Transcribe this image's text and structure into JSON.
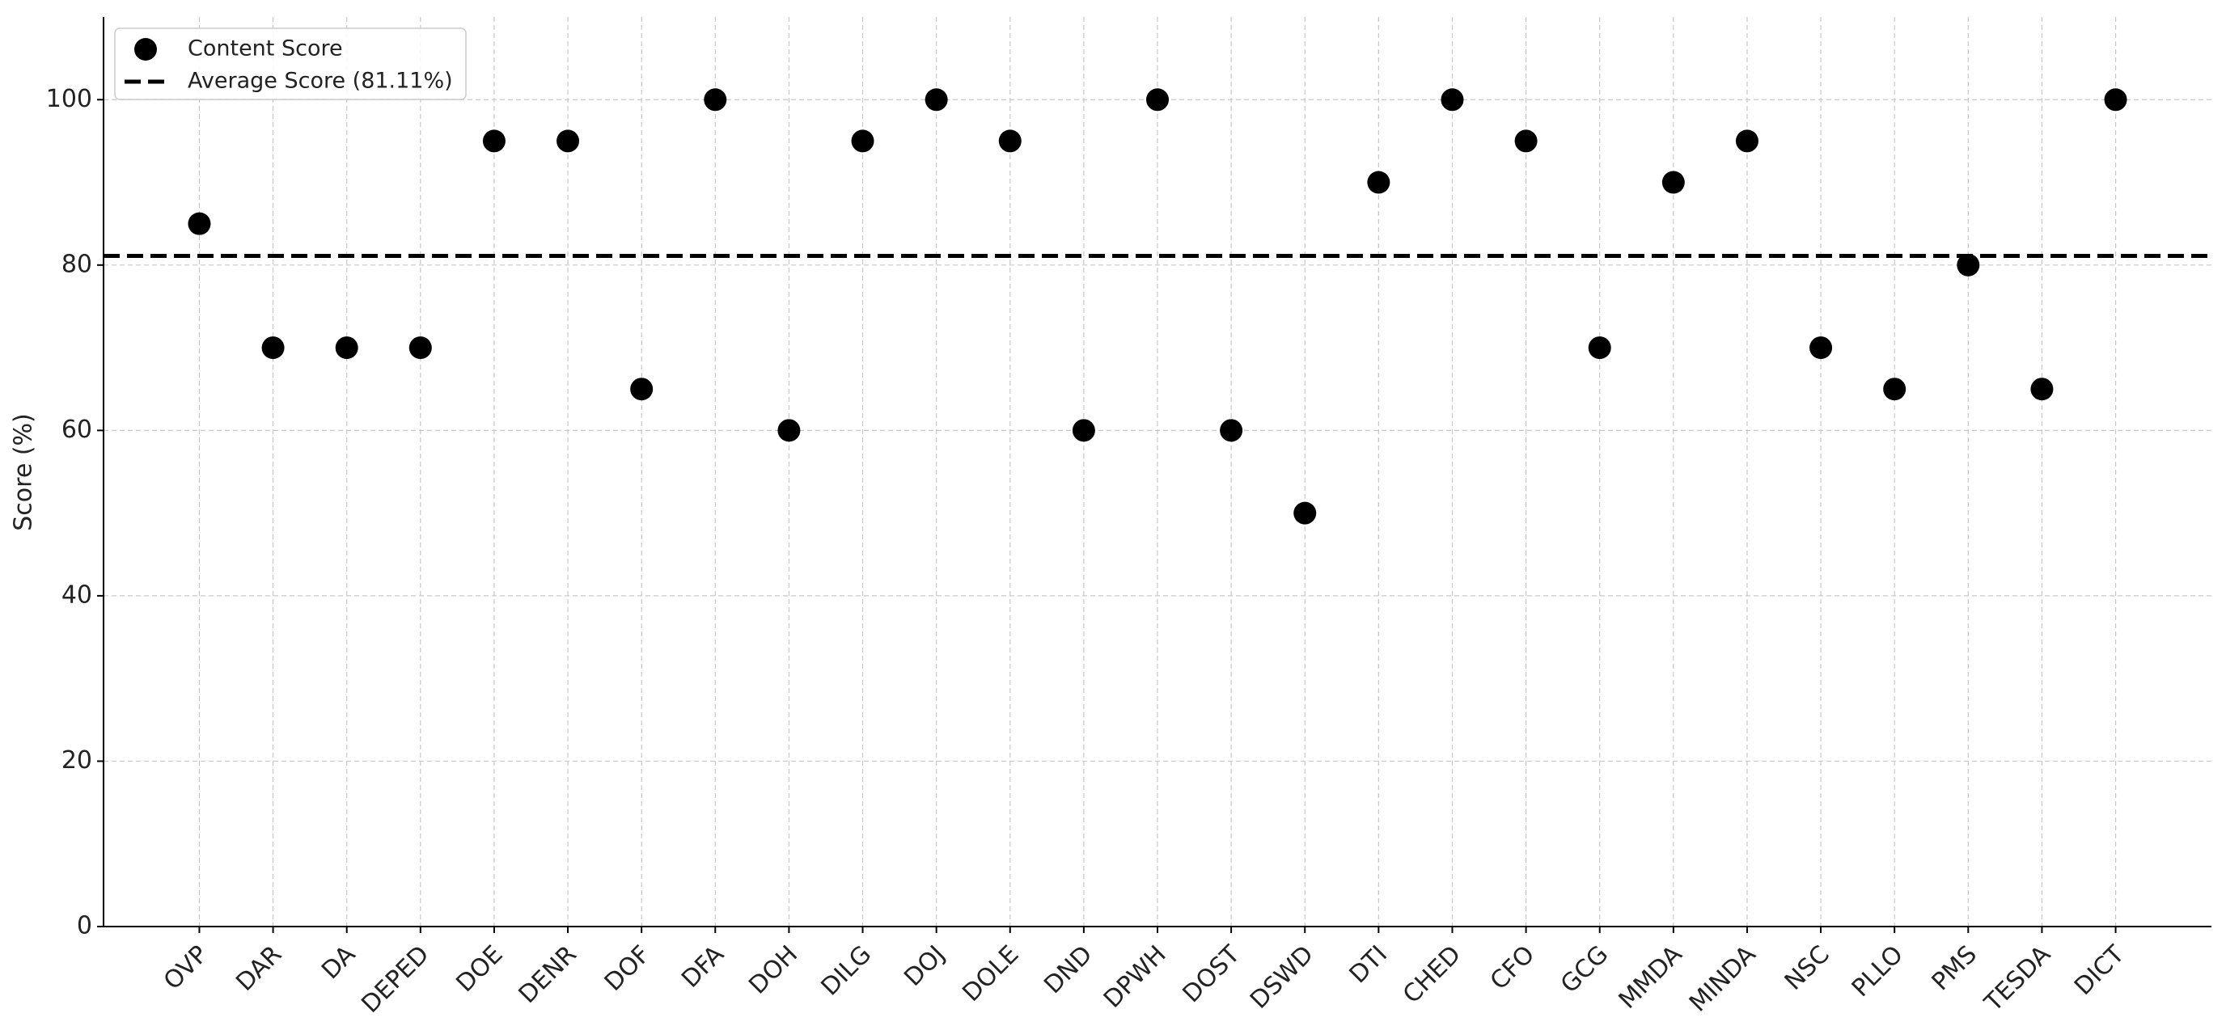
{
  "chart_data": {
    "type": "scatter",
    "ylabel": "Score (%)",
    "categories": [
      "OVP",
      "DAR",
      "DA",
      "DEPED",
      "DOE",
      "DENR",
      "DOF",
      "DFA",
      "DOH",
      "DILG",
      "DOJ",
      "DOLE",
      "DND",
      "DPWH",
      "DOST",
      "DSWD",
      "DTI",
      "CHED",
      "CFO",
      "GCG",
      "MMDA",
      "MINDA",
      "NSC",
      "PLLO",
      "PMS",
      "TESDA",
      "DICT"
    ],
    "series": [
      {
        "name": "Content Score",
        "color": "#000000",
        "values": [
          85,
          70,
          70,
          70,
          95,
          95,
          65,
          100,
          60,
          95,
          100,
          95,
          60,
          100,
          60,
          50,
          90,
          100,
          95,
          70,
          90,
          95,
          70,
          65,
          80,
          65,
          100
        ]
      }
    ],
    "average": {
      "name": "Average Score (81.11%)",
      "value": 81.11,
      "color": "#000000"
    },
    "ylim": [
      0,
      110
    ],
    "yticks": [
      0,
      20,
      40,
      60,
      80,
      100
    ],
    "grid": true,
    "legend": "upper left"
  }
}
